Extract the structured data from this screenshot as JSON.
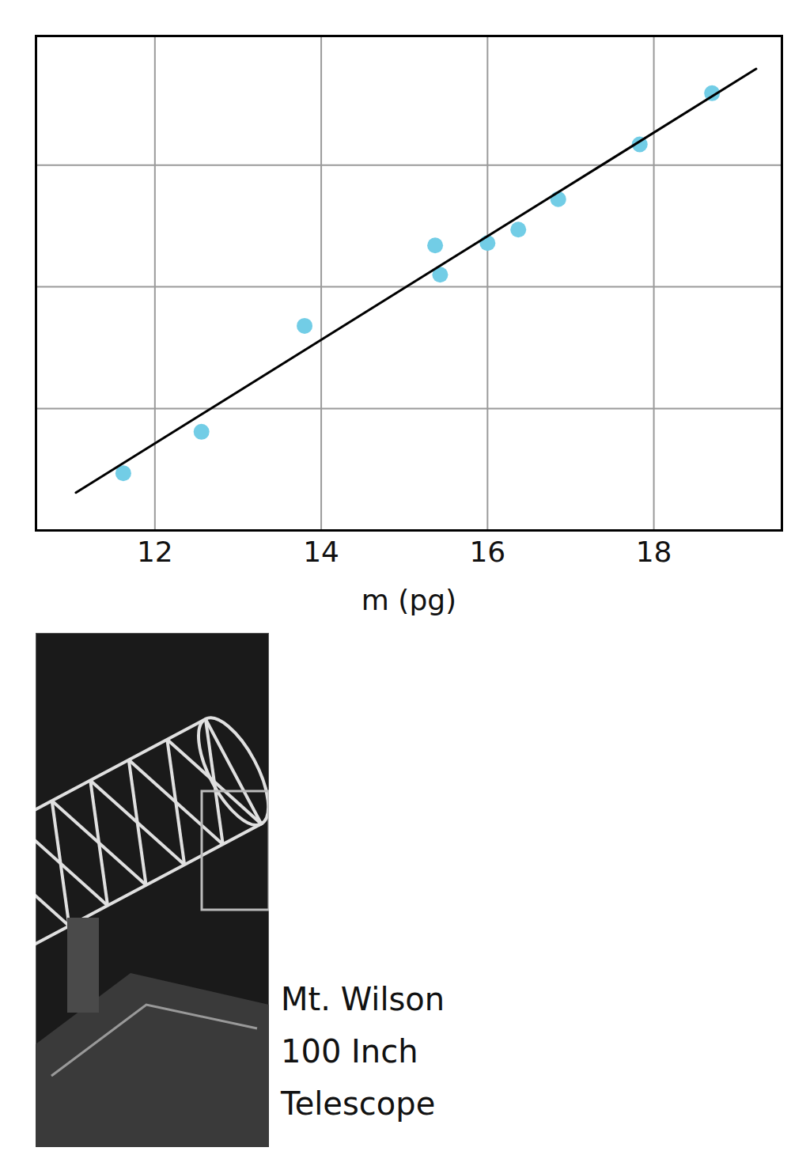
{
  "chart_data": {
    "type": "scatter",
    "x_label": "m (pg)",
    "series": [
      {
        "type": "scatter",
        "color": "#72cde6",
        "marker": "circle",
        "x": [
          11.62,
          12.56,
          13.8,
          15.37,
          15.43,
          16.0,
          16.37,
          16.85,
          17.83,
          18.7
        ],
        "values": [
          0.47,
          0.81,
          1.68,
          2.34,
          2.1,
          2.36,
          2.47,
          2.72,
          3.17,
          3.59
        ]
      },
      {
        "type": "line",
        "color": "#000000",
        "line_style": "solid",
        "x": [
          11.05,
          19.23
        ],
        "values": [
          0.31,
          3.79
        ]
      }
    ],
    "xlim": [
      10.57,
      19.54
    ],
    "xticks": [
      12,
      14,
      16,
      18
    ],
    "ylim": [
      0,
      4.06
    ],
    "yticks": [
      1,
      2,
      3
    ],
    "grid": true,
    "tick_labels": "x",
    "image_caption": [
      "Mt. Wilson",
      "100 Inch",
      "Telescope"
    ]
  }
}
